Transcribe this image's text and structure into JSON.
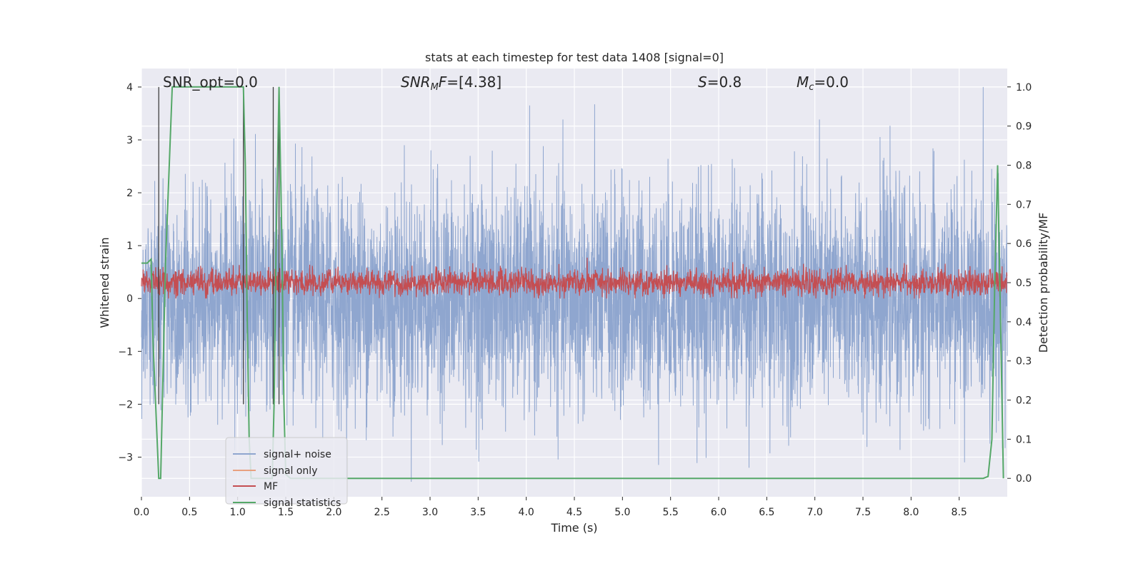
{
  "chart_data": {
    "type": "line",
    "title": "stats at each timestep for test data 1408 [signal=0]",
    "xlabel": "Time (s)",
    "ylabel": "Whitened strain",
    "y2label": "Detection probability/MF",
    "xlim": [
      0.0,
      9.0
    ],
    "ylim": [
      -3.75,
      4.35
    ],
    "y2lim": [
      -0.047,
      1.047
    ],
    "xticks": [
      "0.0",
      "0.5",
      "1.0",
      "1.5",
      "2.0",
      "2.5",
      "3.0",
      "3.5",
      "4.0",
      "4.5",
      "5.0",
      "5.5",
      "6.0",
      "6.5",
      "7.0",
      "7.5",
      "8.0",
      "8.5"
    ],
    "xtick_values": [
      0,
      0.5,
      1,
      1.5,
      2,
      2.5,
      3,
      3.5,
      4,
      4.5,
      5,
      5.5,
      6,
      6.5,
      7,
      7.5,
      8,
      8.5
    ],
    "yticks": [
      "4",
      "3",
      "2",
      "1",
      "0",
      "−1",
      "−2",
      "−3"
    ],
    "ytick_values": [
      4,
      3,
      2,
      1,
      0,
      -1,
      -2,
      -3
    ],
    "y2ticks": [
      "1.0",
      "0.9",
      "0.8",
      "0.7",
      "0.6",
      "0.5",
      "0.4",
      "0.3",
      "0.2",
      "0.1",
      "0.0"
    ],
    "y2tick_values": [
      1.0,
      0.9,
      0.8,
      0.7,
      0.6,
      0.5,
      0.4,
      0.3,
      0.2,
      0.1,
      0.0
    ],
    "grid": true,
    "legend_position": "lower-left",
    "annotations": [
      {
        "text": "SNR_opt=0.0",
        "x": 0.2,
        "y": 4.12
      },
      {
        "text": "SNR_MF=[4.38]",
        "x": 2.6,
        "y": 4.12
      },
      {
        "text": "S=0.8",
        "x": 5.6,
        "y": 4.12
      },
      {
        "text": "M_c=0.0",
        "x": 6.6,
        "y": 4.12
      }
    ],
    "series": [
      {
        "name": "signal+ noise",
        "axis": "left",
        "color": "#8fa6cf",
        "noise_amplitude": 1.25,
        "peak_min": -3.5,
        "peak_max": 4.0
      },
      {
        "name": "signal only",
        "axis": "left",
        "color": "#e8a07f",
        "values": []
      },
      {
        "name": "MF",
        "axis": "left",
        "color": "#c44e52",
        "center": 0.25,
        "band": [
          0.0,
          0.9
        ]
      },
      {
        "name": "signal statistics",
        "axis": "right",
        "color": "#55a868",
        "x": [
          0.0,
          0.06,
          0.1,
          0.12,
          0.18,
          0.2,
          0.25,
          0.32,
          0.34,
          1.0,
          1.06,
          1.08,
          1.1,
          1.12,
          1.14,
          1.2,
          1.25,
          1.3,
          1.36,
          1.38,
          1.4,
          1.43,
          1.46,
          1.48,
          1.5,
          1.55,
          1.7,
          2.0,
          3.0,
          4.0,
          5.0,
          6.0,
          7.0,
          8.0,
          8.6,
          8.75,
          8.8,
          8.84,
          8.87,
          8.9,
          8.93,
          8.96
        ],
        "y": [
          0.55,
          0.55,
          0.56,
          0.35,
          0.0,
          0.0,
          0.55,
          1.0,
          1.0,
          1.0,
          1.0,
          0.8,
          0.4,
          0.1,
          0.0,
          0.0,
          0.0,
          0.0,
          0.0,
          0.2,
          0.6,
          1.0,
          0.6,
          0.2,
          0.01,
          0.0,
          0.0,
          0.0,
          0.0,
          0.0,
          0.0,
          0.0,
          0.0,
          0.0,
          0.0,
          0.0,
          0.005,
          0.1,
          0.5,
          0.8,
          0.4,
          0.0
        ]
      }
    ],
    "vertical_lines_x": [
      0.18,
      1.06,
      1.37,
      1.43
    ],
    "colors": {
      "plot_bg": "#eaeaf2",
      "grid": "#ffffff",
      "vline": "#404040"
    }
  }
}
